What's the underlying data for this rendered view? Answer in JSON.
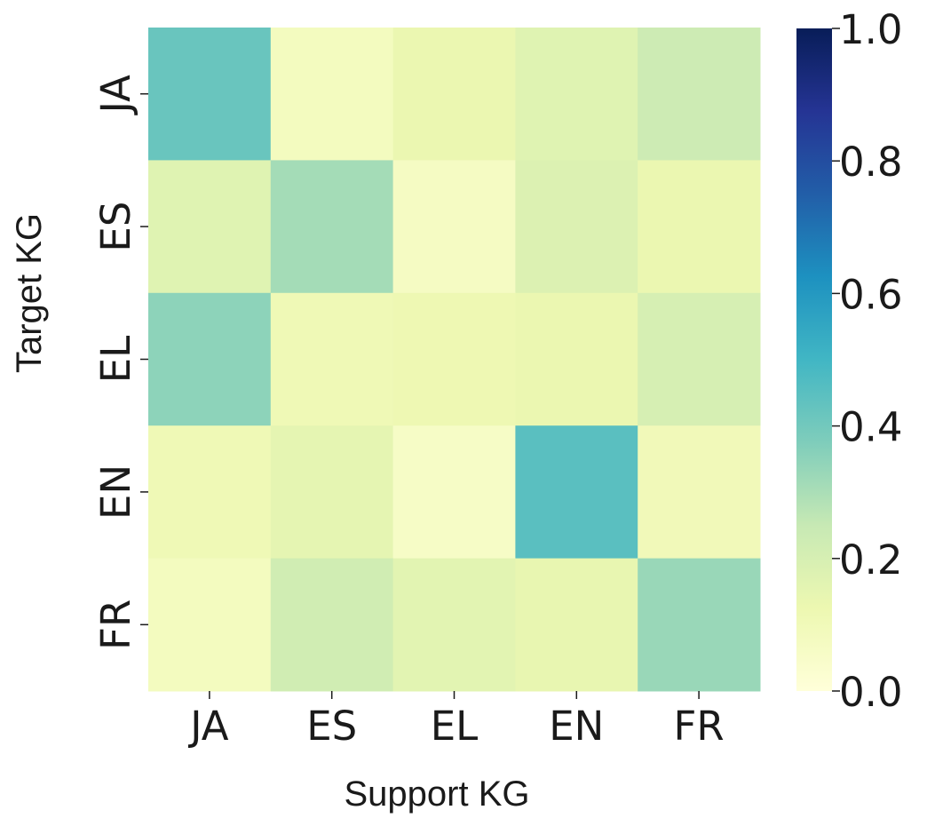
{
  "chart_data": {
    "type": "heatmap",
    "xlabel": "Support KG",
    "ylabel": "Target KG",
    "x_categories": [
      "JA",
      "ES",
      "EL",
      "EN",
      "FR"
    ],
    "y_categories": [
      "JA",
      "ES",
      "EL",
      "EN",
      "FR"
    ],
    "values": [
      [
        0.42,
        0.08,
        0.13,
        0.17,
        0.23
      ],
      [
        0.17,
        0.31,
        0.07,
        0.18,
        0.13
      ],
      [
        0.35,
        0.11,
        0.12,
        0.13,
        0.2
      ],
      [
        0.11,
        0.15,
        0.06,
        0.45,
        0.1
      ],
      [
        0.08,
        0.22,
        0.16,
        0.14,
        0.33
      ]
    ],
    "colorbar": {
      "range": [
        0.0,
        1.0
      ],
      "ticks": [
        "0.0",
        "0.2",
        "0.4",
        "0.6",
        "0.8",
        "1.0"
      ],
      "colormap": "YlGnBu"
    },
    "grid": false
  }
}
